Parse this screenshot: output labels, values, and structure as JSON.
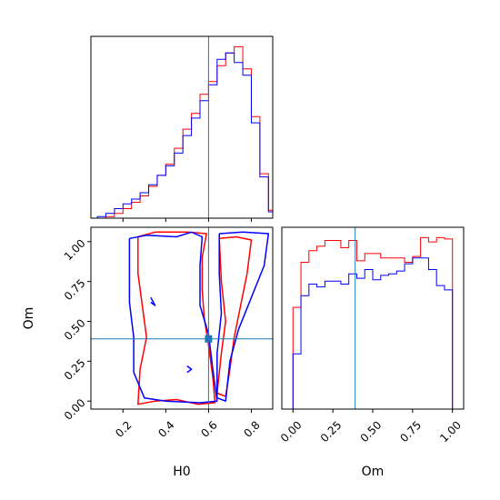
{
  "chart_data": {
    "type": "corner",
    "parameters": [
      "H0",
      "Om"
    ],
    "truths": {
      "H0": 0.6,
      "Om": 0.39
    },
    "colors": {
      "series_a": "#ff0000",
      "series_b": "#0000ff",
      "truth": "#1f77b4"
    },
    "h0_hist": {
      "xlim": [
        0.05,
        0.9
      ],
      "xticks": [
        0.2,
        0.4,
        0.6,
        0.8
      ],
      "edges": [
        0.08,
        0.12,
        0.16,
        0.2,
        0.24,
        0.28,
        0.32,
        0.36,
        0.4,
        0.44,
        0.48,
        0.52,
        0.56,
        0.6,
        0.64,
        0.68,
        0.72,
        0.76,
        0.8,
        0.84,
        0.88,
        0.92
      ],
      "series": [
        {
          "name": "",
          "color": "#ff0000",
          "values": [
            0,
            1,
            3,
            6,
            10,
            14,
            20,
            27,
            34,
            44,
            56,
            66,
            78,
            86,
            96,
            104,
            108,
            94,
            64,
            28,
            5
          ]
        },
        {
          "name": "",
          "color": "#0000ff",
          "values": [
            1,
            3,
            6,
            9,
            12,
            16,
            21,
            27,
            33,
            41,
            52,
            63,
            74,
            84,
            100,
            104,
            98,
            90,
            60,
            26,
            4
          ]
        }
      ]
    },
    "om_hist": {
      "xlim": [
        -0.07,
        1.07
      ],
      "xticks": [
        "0.00",
        "0.25",
        "0.50",
        "0.75",
        "1.00"
      ],
      "edges": [
        0.0,
        0.05,
        0.1,
        0.15,
        0.2,
        0.25,
        0.3,
        0.35,
        0.4,
        0.45,
        0.5,
        0.55,
        0.6,
        0.65,
        0.7,
        0.75,
        0.8,
        0.85,
        0.9,
        0.95,
        1.0
      ],
      "series": [
        {
          "name": "",
          "color": "#ff0000",
          "values": [
            70,
            101,
            109,
            112,
            116,
            116,
            111,
            116,
            102,
            107,
            107,
            104,
            104,
            104,
            101,
            105,
            118,
            115,
            118,
            117
          ]
        },
        {
          "name": "",
          "color": "#0000ff",
          "values": [
            38,
            78,
            86,
            84,
            88,
            88,
            86,
            93,
            90,
            96,
            89,
            92,
            93,
            95,
            100,
            104,
            104,
            96,
            85,
            82
          ]
        }
      ]
    },
    "joint": {
      "xlabel": "H0",
      "ylabel": "Om",
      "xlim": [
        0.05,
        0.9
      ],
      "ylim": [
        -0.05,
        1.09
      ],
      "xticks": [
        "0.2",
        "0.4",
        "0.6",
        "0.8"
      ],
      "yticks": [
        "0.00",
        "0.25",
        "0.50",
        "0.75",
        "1.00"
      ],
      "contours": [
        {
          "color": "#ff0000",
          "points": [
            [
              0.27,
              1.03
            ],
            [
              0.35,
              1.06
            ],
            [
              0.5,
              1.06
            ],
            [
              0.59,
              1.05
            ],
            [
              0.57,
              0.9
            ],
            [
              0.57,
              0.7
            ],
            [
              0.58,
              0.52
            ],
            [
              0.6,
              0.35
            ],
            [
              0.62,
              0.15
            ],
            [
              0.63,
              -0.01
            ],
            [
              0.55,
              -0.02
            ],
            [
              0.45,
              0.01
            ],
            [
              0.35,
              0.0
            ],
            [
              0.27,
              -0.02
            ],
            [
              0.28,
              0.2
            ],
            [
              0.31,
              0.4
            ],
            [
              0.29,
              0.6
            ],
            [
              0.27,
              0.8
            ],
            [
              0.27,
              1.03
            ]
          ]
        },
        {
          "color": "#ff0000",
          "points": [
            [
              0.65,
              1.02
            ],
            [
              0.73,
              1.03
            ],
            [
              0.8,
              1.01
            ],
            [
              0.78,
              0.8
            ],
            [
              0.75,
              0.6
            ],
            [
              0.72,
              0.4
            ],
            [
              0.7,
              0.2
            ],
            [
              0.68,
              0.03
            ],
            [
              0.64,
              0.05
            ],
            [
              0.66,
              0.3
            ],
            [
              0.68,
              0.5
            ],
            [
              0.66,
              0.75
            ],
            [
              0.65,
              1.02
            ]
          ]
        },
        {
          "color": "#0000ff",
          "points": [
            [
              0.23,
              1.02
            ],
            [
              0.31,
              1.04
            ],
            [
              0.45,
              1.03
            ],
            [
              0.52,
              1.06
            ],
            [
              0.57,
              1.03
            ],
            [
              0.56,
              0.85
            ],
            [
              0.56,
              0.6
            ],
            [
              0.6,
              0.42
            ],
            [
              0.62,
              0.2
            ],
            [
              0.64,
              0.0
            ],
            [
              0.56,
              -0.01
            ],
            [
              0.4,
              0.0
            ],
            [
              0.3,
              0.02
            ],
            [
              0.25,
              0.18
            ],
            [
              0.25,
              0.4
            ],
            [
              0.23,
              0.62
            ],
            [
              0.23,
              0.82
            ],
            [
              0.23,
              1.02
            ]
          ]
        },
        {
          "color": "#0000ff",
          "points": [
            [
              0.65,
              1.05
            ],
            [
              0.76,
              1.06
            ],
            [
              0.88,
              1.05
            ],
            [
              0.86,
              0.85
            ],
            [
              0.8,
              0.65
            ],
            [
              0.74,
              0.45
            ],
            [
              0.7,
              0.25
            ],
            [
              0.68,
              0.0
            ],
            [
              0.64,
              0.02
            ],
            [
              0.64,
              0.3
            ],
            [
              0.66,
              0.55
            ],
            [
              0.65,
              0.8
            ],
            [
              0.65,
              1.05
            ]
          ]
        },
        {
          "color": "#0000ff",
          "points": [
            [
              0.33,
              0.65
            ],
            [
              0.35,
              0.6
            ],
            [
              0.33,
              0.62
            ]
          ]
        },
        {
          "color": "#0000ff",
          "points": [
            [
              0.5,
              0.22
            ],
            [
              0.52,
              0.2
            ],
            [
              0.5,
              0.18
            ]
          ]
        }
      ]
    }
  }
}
